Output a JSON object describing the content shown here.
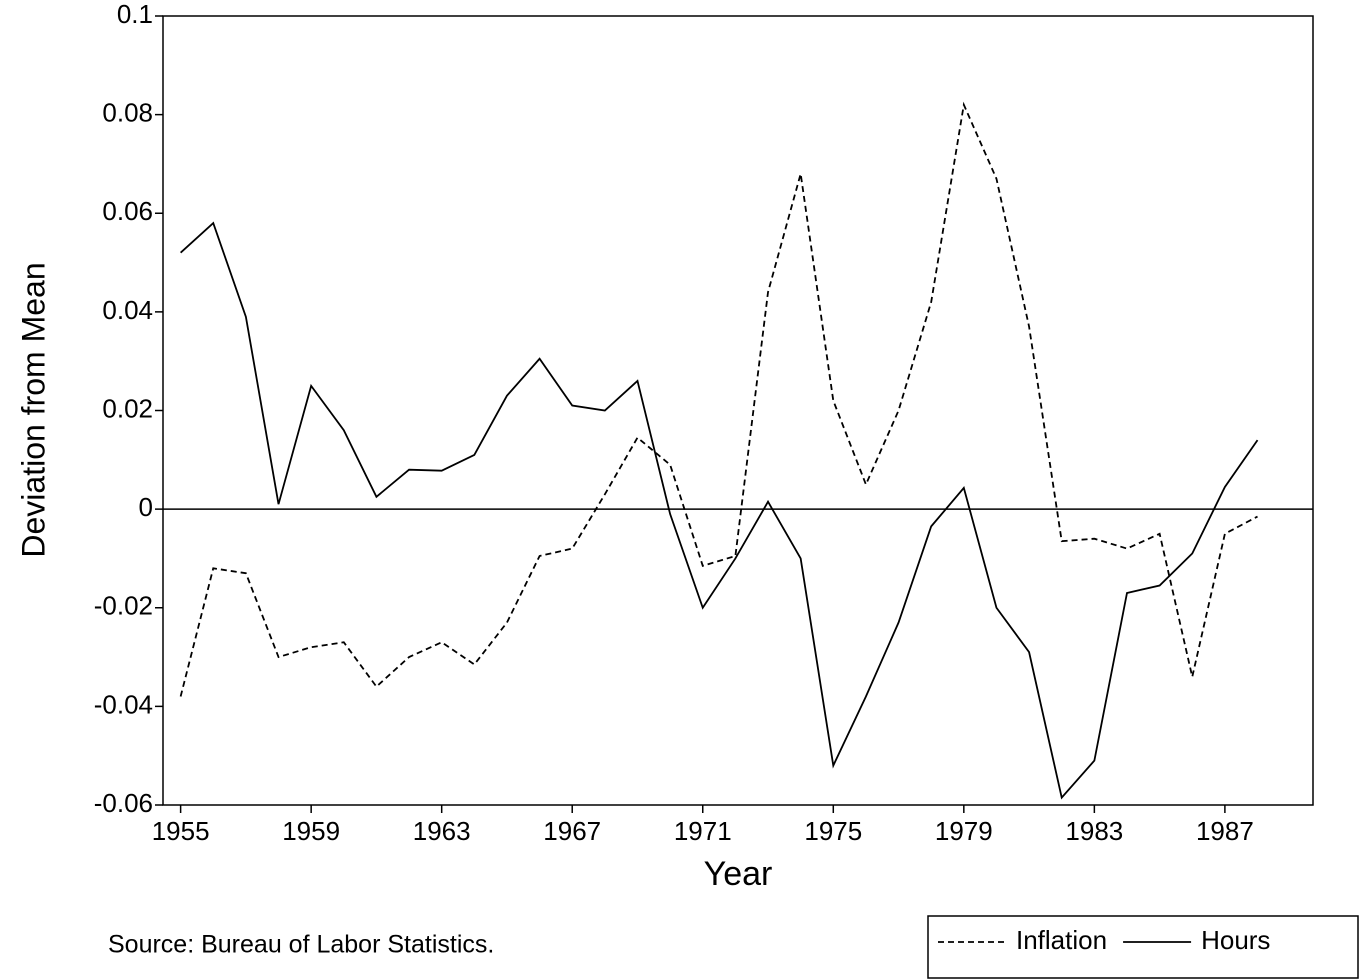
{
  "chart_data": {
    "type": "line",
    "y_label": "Deviation from Mean",
    "x_label": "Year",
    "source": "Source:  Bureau of Labor Statistics.",
    "x": [
      1955,
      1956,
      1957,
      1958,
      1959,
      1960,
      1961,
      1962,
      1963,
      1964,
      1965,
      1966,
      1967,
      1968,
      1969,
      1970,
      1971,
      1972,
      1973,
      1974,
      1975,
      1976,
      1977,
      1978,
      1979,
      1980,
      1981,
      1982,
      1983,
      1984,
      1985,
      1986,
      1987,
      1988
    ],
    "series": [
      {
        "name": "Inflation",
        "color": "#000000",
        "dash": "dashed",
        "values": [
          -0.038,
          -0.012,
          -0.013,
          -0.03,
          -0.028,
          -0.027,
          -0.036,
          -0.03,
          -0.027,
          -0.0315,
          -0.023,
          -0.0095,
          -0.008,
          0.003,
          0.0145,
          0.009,
          -0.0115,
          -0.0095,
          0.044,
          0.068,
          0.022,
          0.005,
          0.02,
          0.042,
          0.082,
          0.067,
          0.037,
          -0.0065,
          -0.006,
          -0.008,
          -0.005,
          -0.034,
          -0.005,
          -0.0015
        ]
      },
      {
        "name": "Hours",
        "color": "#000000",
        "dash": "solid",
        "values": [
          0.052,
          0.058,
          0.039,
          0.001,
          0.025,
          0.016,
          0.0025,
          0.008,
          0.0078,
          0.011,
          0.023,
          0.0305,
          0.021,
          0.02,
          0.026,
          -0.001,
          -0.02,
          -0.01,
          0.0015,
          -0.01,
          -0.052,
          -0.038,
          -0.023,
          -0.0035,
          0.0043,
          -0.02,
          -0.029,
          -0.0585,
          -0.051,
          -0.017,
          -0.0155,
          -0.009,
          0.0045,
          0.014
        ]
      }
    ],
    "xlim": [
      1954.46,
      1989.7
    ],
    "xticks": [
      1955,
      1959,
      1963,
      1967,
      1971,
      1975,
      1979,
      1983,
      1987
    ],
    "ylim": [
      -0.06,
      0.1
    ],
    "yticks": [
      0.1,
      0.08,
      0.06,
      0.04,
      0.02,
      0,
      -0.02,
      -0.04,
      -0.06
    ],
    "zero_line": true,
    "legend": "bottom-right"
  }
}
